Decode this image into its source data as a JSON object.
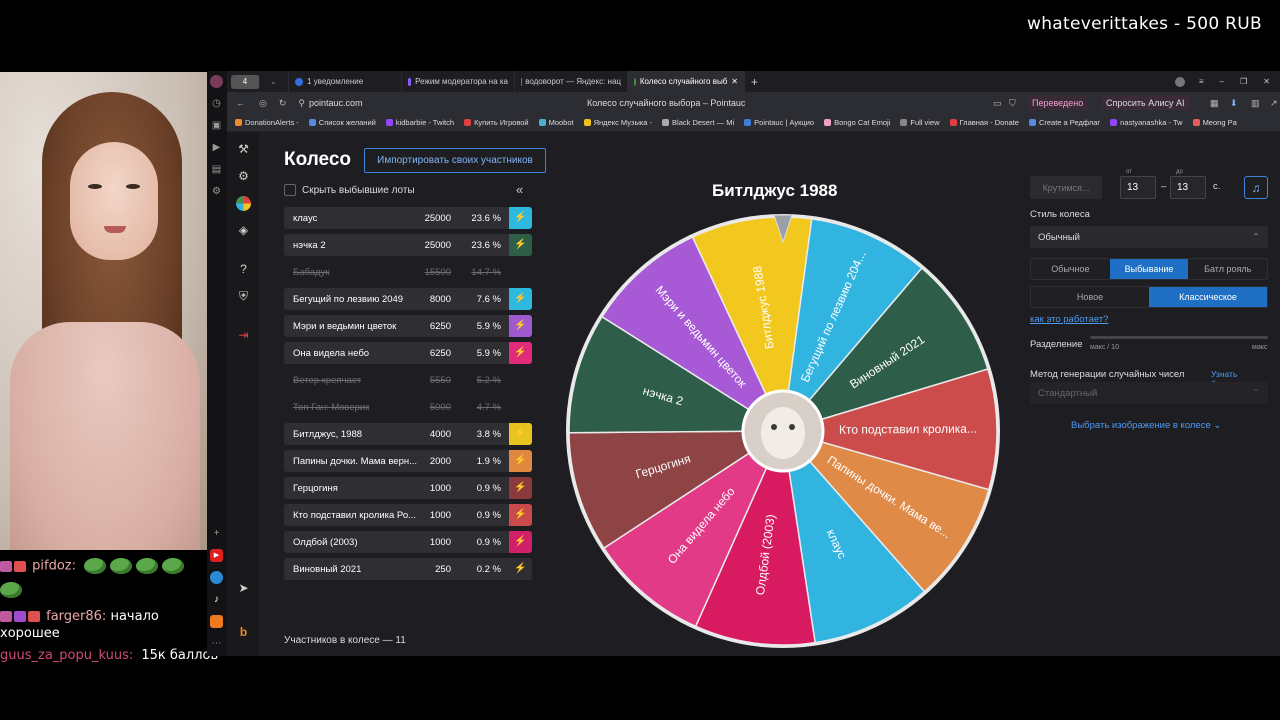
{
  "overlay": {
    "donation": "whateverittakes - 500 RUB"
  },
  "chat": [
    {
      "user": "pifdoz:",
      "user_color": "#e8a8a8",
      "text": ""
    },
    {
      "user": "farger86:",
      "user_color": "#e8a8a8",
      "text": "начало"
    },
    {
      "user": "",
      "user_color": "",
      "text": "хорошее"
    },
    {
      "user": "guus_za_popu_kuus:",
      "user_color": "#d14a7a",
      "text": "15к баллов"
    }
  ],
  "browser": {
    "tabs": [
      {
        "label": "4",
        "color": "#888"
      },
      {
        "label": "1 уведомление",
        "color": "#2f6fdf"
      },
      {
        "label": "Режим модератора на ка",
        "color": "#8a5cf6"
      },
      {
        "label": "водоворот — Яндекс: нац",
        "color": "#e04040"
      },
      {
        "label": "Колесо случайного выб",
        "color": "#4a8f4a"
      }
    ],
    "address": "pointauc.com",
    "page_title": "Колесо случайного выбора – Pointauc",
    "translated": "Переведено",
    "ask_alice": "Спросить Алису AI",
    "bookmarks": [
      {
        "label": "DonationAlerts -",
        "color": "#f08a2a"
      },
      {
        "label": "Список желаний",
        "color": "#5a8ae0"
      },
      {
        "label": "kidbarbie - Twitch",
        "color": "#9146ff"
      },
      {
        "label": "Купить Игровой",
        "color": "#e04040"
      },
      {
        "label": "Moobot",
        "color": "#4ab0d0"
      },
      {
        "label": "Яндекс Музыка -",
        "color": "#f0c020"
      },
      {
        "label": "Black Desert — Mi",
        "color": "#aaaaaa"
      },
      {
        "label": "Pointauc | Аукцио",
        "color": "#3d7fd9"
      },
      {
        "label": "Bongo Cat Emoji",
        "color": "#f0a0c0"
      },
      {
        "label": "Full view",
        "color": "#888888"
      },
      {
        "label": "Главная - Donate",
        "color": "#e04040"
      },
      {
        "label": "Create a Редфлаг",
        "color": "#5a8ae0"
      },
      {
        "label": "nastyanashka - Tw",
        "color": "#9146ff"
      },
      {
        "label": "Meong Pa",
        "color": "#e06060"
      }
    ]
  },
  "app": {
    "title": "Колесо",
    "import_label": "Импортировать своих участников",
    "hide_label": "Скрыть выбывшие лоты",
    "participants_count": "Участников в колесе — 11",
    "winner": "Битлджус 1988",
    "lots": [
      {
        "name": "клаус",
        "amount": "25000",
        "percent": "23.6 %",
        "color": "#2db8e0",
        "out": false
      },
      {
        "name": "нэчка 2",
        "amount": "25000",
        "percent": "23.6 %",
        "color": "#2c5e48",
        "out": false
      },
      {
        "name": "Бабадук",
        "amount": "15500",
        "percent": "14.7 %",
        "color": "#2e2e33",
        "out": true
      },
      {
        "name": "Бегущий по лезвию 2049",
        "amount": "8000",
        "percent": "7.6 %",
        "color": "#2db8e0",
        "out": false
      },
      {
        "name": "Мэри и ведьмин цветок",
        "amount": "6250",
        "percent": "5.9 %",
        "color": "#a05ad0",
        "out": false
      },
      {
        "name": "Она видела небо",
        "amount": "6250",
        "percent": "5.9 %",
        "color": "#e02a7a",
        "out": false
      },
      {
        "name": "Ветер крепчает",
        "amount": "5550",
        "percent": "5.2 %",
        "color": "#2e2e33",
        "out": true
      },
      {
        "name": "Топ Ган: Мэверик",
        "amount": "5000",
        "percent": "4.7 %",
        "color": "#2e2e33",
        "out": true
      },
      {
        "name": "Битлджус, 1988",
        "amount": "4000",
        "percent": "3.8 %",
        "color": "#e8c420",
        "out": false
      },
      {
        "name": "Папины дочки. Мама верн...",
        "amount": "2000",
        "percent": "1.9 %",
        "color": "#e08840",
        "out": false
      },
      {
        "name": "Герцогиня",
        "amount": "1000",
        "percent": "0.9 %",
        "color": "#8a3a3a",
        "out": false
      },
      {
        "name": "Кто подставил кролика Ро...",
        "amount": "1000",
        "percent": "0.9 %",
        "color": "#c84a4a",
        "out": false
      },
      {
        "name": "Олдбой (2003)",
        "amount": "1000",
        "percent": "0.9 %",
        "color": "#d0206a",
        "out": false
      },
      {
        "name": "Виновный 2021",
        "amount": "250",
        "percent": "0.2 %",
        "color": "#2e2e33",
        "out": false
      }
    ],
    "wheel_segments": [
      {
        "label": "Битлджус 1988",
        "color": "#f2c81e"
      },
      {
        "label": "Бегущий по лезвию 204...",
        "color": "#32b4e0"
      },
      {
        "label": "Виновный 2021",
        "color": "#2e5e4a"
      },
      {
        "label": "Кто подставил кролика...",
        "color": "#cc4b4b"
      },
      {
        "label": "Папины дочки. Мама ве...",
        "color": "#e08a48"
      },
      {
        "label": "клаус",
        "color": "#32b4e0"
      },
      {
        "label": "Олдбой (2003)",
        "color": "#d81a60"
      },
      {
        "label": "Она видела небо",
        "color": "#e23a86"
      },
      {
        "label": "Герцогиня",
        "color": "#8e4444"
      },
      {
        "label": "нэчка 2",
        "color": "#2e5e4a"
      },
      {
        "label": "Мэри и ведьмин цветок",
        "color": "#a85ad6"
      }
    ],
    "settings": {
      "spinning": "Крутимся...",
      "from_label": "от",
      "to_label": "до",
      "from_value": "13",
      "to_value": "13",
      "sec": "с.",
      "dash": "–",
      "wheel_style_label": "Стиль колеса",
      "wheel_style": "Обычный",
      "mode_options": [
        "Обычное",
        "Выбывание",
        "Батл рояль"
      ],
      "mode_active": "Выбывание",
      "variant_options": [
        "Новое",
        "Классическое"
      ],
      "variant_active": "Классическое",
      "how_it_works": "как это работает?",
      "split_label": "Разделение",
      "split_min": "макс / 10",
      "split_max": "макс",
      "rng_label": "Метод генерации случайных чисел",
      "learn_more": "Узнать больше",
      "rng_value": "Стандартный",
      "choose_image": "Выбрать изображение в колесе"
    }
  }
}
